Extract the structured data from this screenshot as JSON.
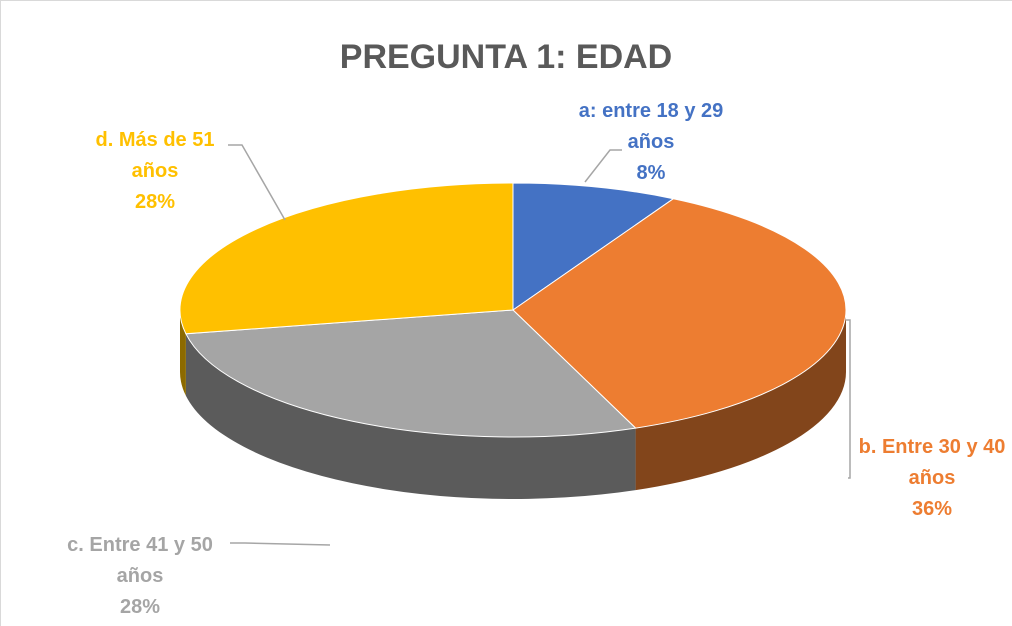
{
  "chart_data": {
    "type": "pie",
    "title": "PREGUNTA 1: EDAD",
    "categories": [
      "a: entre 18 y 29 años",
      "b. Entre 30 y 40 años",
      "c. Entre 41 y 50 años",
      "d. Más de 51 años"
    ],
    "values": [
      8,
      36,
      28,
      28
    ],
    "value_labels": [
      "8%",
      "36%",
      "28%",
      "28%"
    ],
    "colors": [
      "#4472c4",
      "#ed7d31",
      "#a5a5a5",
      "#ffc000"
    ]
  }
}
